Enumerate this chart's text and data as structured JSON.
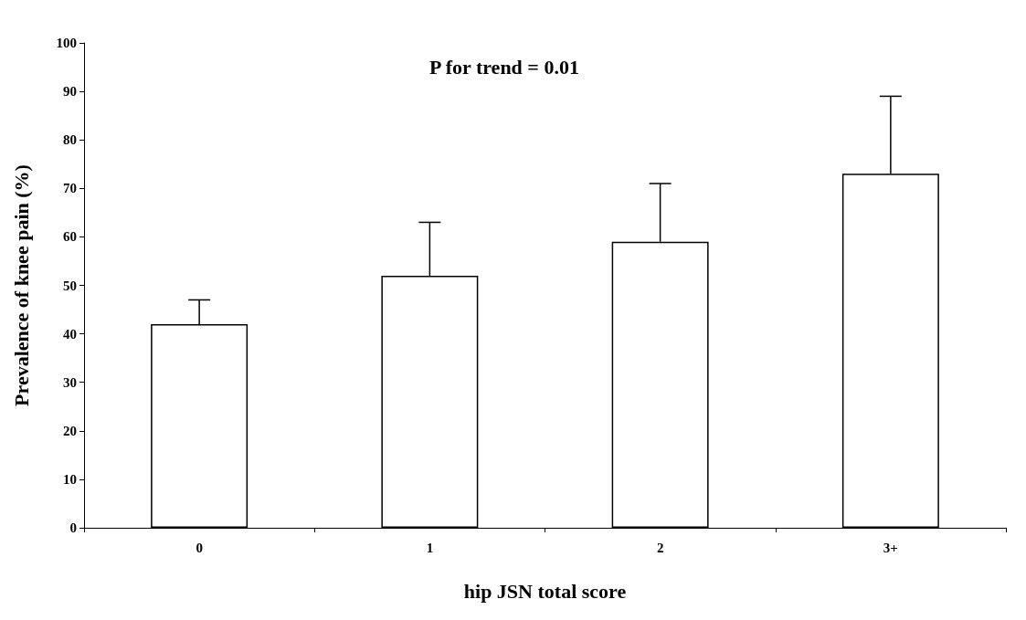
{
  "chart_data": {
    "type": "bar",
    "xlabel": "hip JSN total score",
    "ylabel": "Prevalence of knee pain (%)",
    "categories": [
      "0",
      "1",
      "2",
      "3+"
    ],
    "values": [
      42,
      52,
      59,
      73
    ],
    "errors": [
      [
        42,
        47
      ],
      [
        52,
        63
      ],
      [
        59,
        71
      ],
      [
        73,
        89
      ]
    ],
    "color": "#ffffff",
    "ylim": [
      0,
      100
    ],
    "yticks": [
      0,
      10,
      20,
      30,
      40,
      50,
      60,
      70,
      80,
      90,
      100
    ],
    "grid": false,
    "annotations": [
      "P for trend = 0.01"
    ]
  }
}
